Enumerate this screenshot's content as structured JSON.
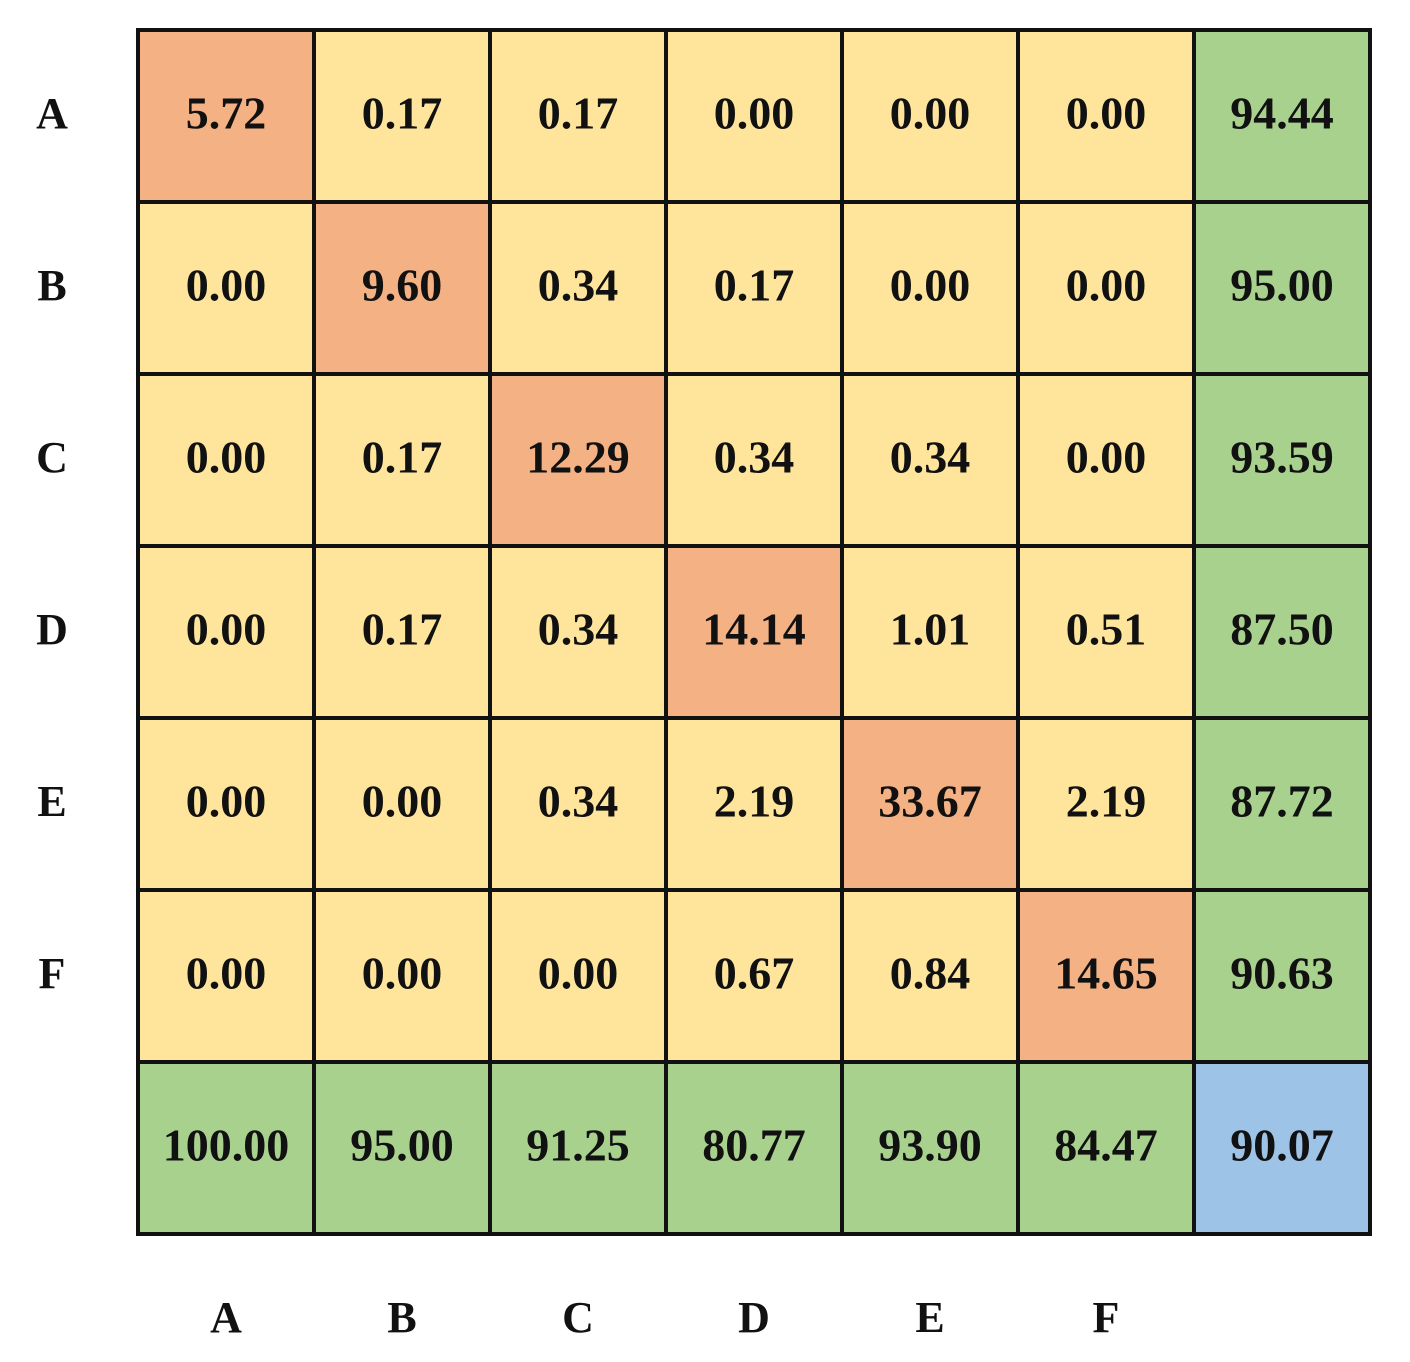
{
  "chart_data": {
    "type": "heatmap",
    "row_labels": [
      "A",
      "B",
      "C",
      "D",
      "E",
      "F",
      ""
    ],
    "col_labels": [
      "A",
      "B",
      "C",
      "D",
      "E",
      "F",
      ""
    ],
    "values": [
      [
        "5.72",
        "0.17",
        "0.17",
        "0.00",
        "0.00",
        "0.00",
        "94.44"
      ],
      [
        "0.00",
        "9.60",
        "0.34",
        "0.17",
        "0.00",
        "0.00",
        "95.00"
      ],
      [
        "0.00",
        "0.17",
        "12.29",
        "0.34",
        "0.34",
        "0.00",
        "93.59"
      ],
      [
        "0.00",
        "0.17",
        "0.34",
        "14.14",
        "1.01",
        "0.51",
        "87.50"
      ],
      [
        "0.00",
        "0.00",
        "0.34",
        "2.19",
        "33.67",
        "2.19",
        "87.72"
      ],
      [
        "0.00",
        "0.00",
        "0.00",
        "0.67",
        "0.84",
        "14.65",
        "90.63"
      ],
      [
        "100.00",
        "95.00",
        "91.25",
        "80.77",
        "93.90",
        "84.47",
        "90.07"
      ]
    ],
    "colors": {
      "off_diagonal": "#FFE49B",
      "diagonal": "#F4B183",
      "summary": "#A9D18E",
      "overall": "#9DC3E6",
      "border": "#111111"
    }
  }
}
